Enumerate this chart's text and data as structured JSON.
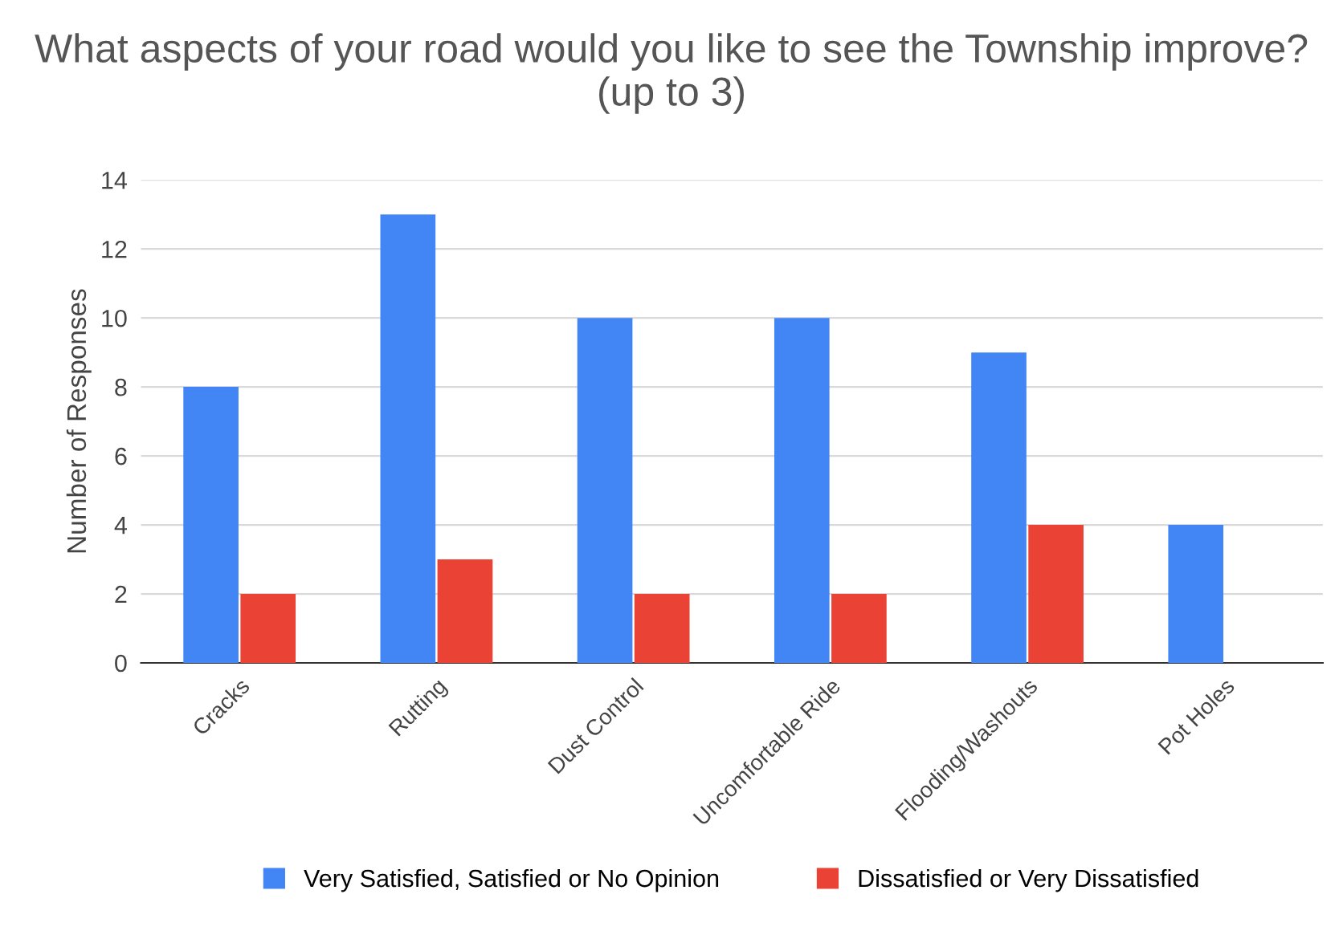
{
  "chart_data": {
    "type": "bar",
    "title": "What aspects of your road would you like to see the Township improve? (up to 3)",
    "ylabel": "Number of Responses",
    "categories": [
      "Cracks",
      "Rutting",
      "Dust Control",
      "Uncomfortable Ride",
      "Flooding/Washouts",
      "Pot Holes"
    ],
    "series": [
      {
        "name": "Very Satisfied, Satisfied or No Opinion",
        "color": "#4285f4",
        "values": [
          8,
          13,
          10,
          10,
          9,
          4
        ]
      },
      {
        "name": "Dissatisfied or Very Dissatisfied",
        "color": "#ea4335",
        "values": [
          2,
          3,
          2,
          2,
          4,
          0
        ]
      }
    ],
    "ylim": [
      0,
      14
    ],
    "yticks": [
      0,
      2,
      4,
      6,
      8,
      10,
      12,
      14
    ],
    "grid": "y",
    "legend": "bottom"
  }
}
